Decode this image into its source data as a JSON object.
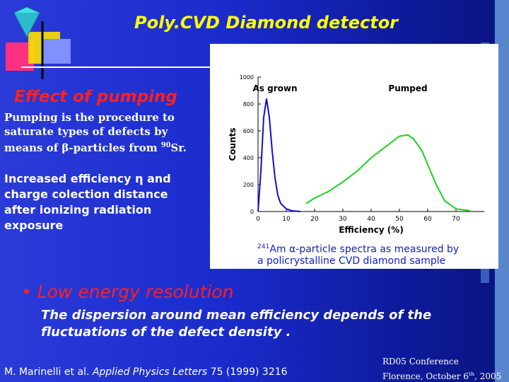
{
  "header": {
    "title": "Poly.CVD Diamond detector"
  },
  "section": {
    "title": "Effect of pumping"
  },
  "para1": {
    "line1": "Pumping is the  procedure to",
    "line2": "saturate  types of defects by",
    "line3a": "means of β-particles from ",
    "line3sup": "90",
    "line3b": "Sr."
  },
  "para2": {
    "line1": "Increased efficiency η and",
    "line2": "charge colection distance",
    "line3": "after ionizing radiation",
    "line4": "exposure"
  },
  "figure": {
    "type": "line",
    "y_label": "Counts",
    "x_label": "Efficiency (%)",
    "xlim": [
      0,
      80
    ],
    "xticks": [
      0,
      10,
      20,
      30,
      40,
      50,
      60,
      70
    ],
    "ylim": [
      0,
      1000
    ],
    "yticks": [
      0,
      200,
      400,
      600,
      800,
      1000
    ],
    "series": [
      {
        "name": "As grown",
        "color": "#1010c8",
        "x": [
          0,
          1,
          2,
          3,
          4,
          5,
          6,
          7,
          8,
          10,
          12,
          15
        ],
        "values": [
          0,
          300,
          700,
          840,
          700,
          450,
          250,
          120,
          60,
          20,
          5,
          0
        ]
      },
      {
        "name": "Pumped",
        "color": "#20d020",
        "x": [
          17,
          20,
          25,
          30,
          35,
          40,
          45,
          50,
          53,
          55,
          58,
          60,
          63,
          66,
          70,
          75
        ],
        "values": [
          60,
          100,
          150,
          220,
          300,
          400,
          480,
          560,
          570,
          540,
          450,
          350,
          200,
          80,
          20,
          5
        ]
      }
    ]
  },
  "caption": {
    "sup": "241",
    "line1": "Am α-particle spectra as measured by",
    "line2": "a policrystalline CVD diamond sample"
  },
  "bullet": "Low energy resolution",
  "body": {
    "line1": "The dispersion around  mean efficiency  depends of the",
    "line2": "fluctuations of the defect density ."
  },
  "footer": {
    "authors": "M. Marinelli et al.",
    "journal": "Applied Physics Letters",
    "ref": "75 (1999) 3216",
    "conf": "RD05 Conference",
    "place": "Florence, October 6",
    "sup": "th",
    "year": ", 2005"
  }
}
